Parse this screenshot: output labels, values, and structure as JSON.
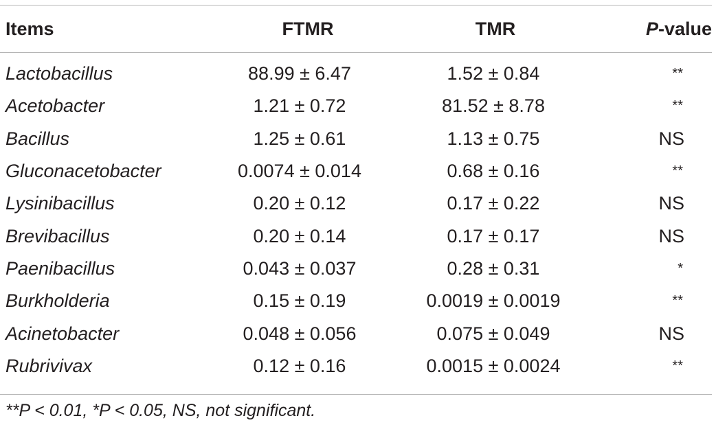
{
  "table": {
    "headers": {
      "items": "Items",
      "ftmr": "FTMR",
      "tmr": "TMR",
      "p_italic": "P",
      "p_rest": "-value"
    },
    "rows": [
      {
        "item": "Lactobacillus",
        "ftmr": "88.99 ± 6.47",
        "tmr": "1.52 ± 0.84",
        "p": "**"
      },
      {
        "item": "Acetobacter",
        "ftmr": "1.21 ± 0.72",
        "tmr": "81.52 ± 8.78",
        "p": "**"
      },
      {
        "item": "Bacillus",
        "ftmr": "1.25 ± 0.61",
        "tmr": "1.13 ± 0.75",
        "p": "NS"
      },
      {
        "item": "Gluconacetobacter",
        "ftmr": "0.0074 ± 0.014",
        "tmr": "0.68 ± 0.16",
        "p": "**"
      },
      {
        "item": "Lysinibacillus",
        "ftmr": "0.20 ± 0.12",
        "tmr": "0.17 ± 0.22",
        "p": "NS"
      },
      {
        "item": "Brevibacillus",
        "ftmr": "0.20 ± 0.14",
        "tmr": "0.17 ± 0.17",
        "p": "NS"
      },
      {
        "item": "Paenibacillus",
        "ftmr": "0.043 ± 0.037",
        "tmr": "0.28 ± 0.31",
        "p": "*"
      },
      {
        "item": "Burkholderia",
        "ftmr": "0.15 ± 0.19",
        "tmr": "0.0019 ± 0.0019",
        "p": "**"
      },
      {
        "item": "Acinetobacter",
        "ftmr": "0.048 ± 0.056",
        "tmr": "0.075 ± 0.049",
        "p": "NS"
      },
      {
        "item": "Rubrivivax",
        "ftmr": "0.12 ± 0.16",
        "tmr": "0.0015 ± 0.0024",
        "p": "**"
      }
    ],
    "footnote": "**P < 0.01, *P < 0.05, NS, not significant."
  }
}
